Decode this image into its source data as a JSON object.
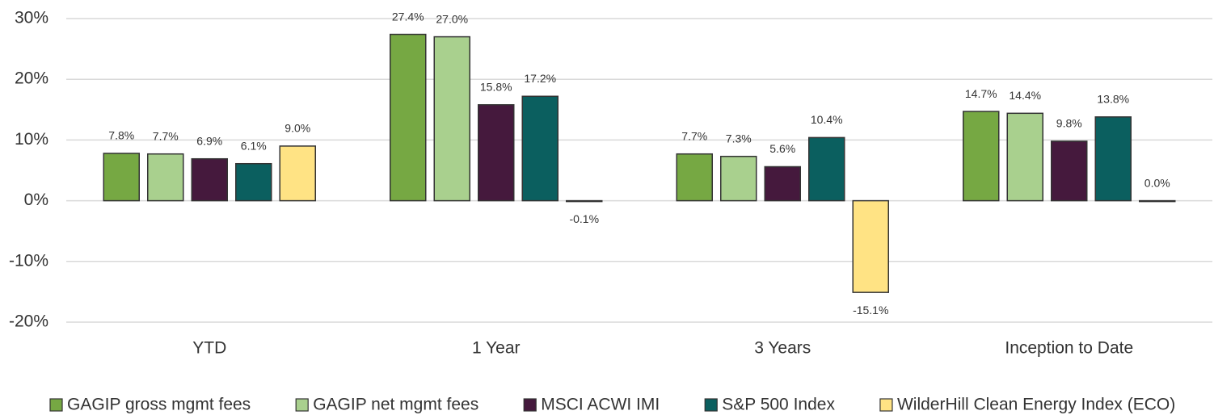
{
  "chart_data": {
    "type": "bar",
    "categories": [
      "YTD",
      "1 Year",
      "3 Years",
      "Inception to Date"
    ],
    "series": [
      {
        "name": "GAGIP gross mgmt fees",
        "color": "#76a843",
        "values": [
          7.8,
          27.4,
          7.7,
          14.7
        ],
        "value_labels": [
          "7.8%",
          "27.4%",
          "7.7%",
          "14.7%"
        ]
      },
      {
        "name": "GAGIP net mgmt fees",
        "color": "#a9d08e",
        "values": [
          7.7,
          27.0,
          7.3,
          14.4
        ],
        "value_labels": [
          "7.7%",
          "27.0%",
          "7.3%",
          "14.4%"
        ]
      },
      {
        "name": "MSCI ACWI IMI",
        "color": "#45193d",
        "values": [
          6.9,
          15.8,
          5.6,
          9.8
        ],
        "value_labels": [
          "6.9%",
          "15.8%",
          "5.6%",
          "9.8%"
        ]
      },
      {
        "name": "S&P 500 Index",
        "color": "#0b5f5f",
        "values": [
          6.1,
          17.2,
          10.4,
          13.8
        ],
        "value_labels": [
          "6.1%",
          "17.2%",
          "10.4%",
          "13.8%"
        ]
      },
      {
        "name": "WilderHill Clean Energy Index (ECO)",
        "color": "#ffe384",
        "values": [
          9.0,
          -0.1,
          -15.1,
          0.0
        ],
        "value_labels": [
          "9.0%",
          "-0.1%",
          "-15.1%",
          "0.0%"
        ]
      }
    ],
    "ylim": [
      -20,
      30
    ],
    "yticks": [
      {
        "value": -20,
        "label": "-20%"
      },
      {
        "value": -10,
        "label": "-10%"
      },
      {
        "value": 0,
        "label": "0%"
      },
      {
        "value": 10,
        "label": "10%"
      },
      {
        "value": 20,
        "label": "20%"
      },
      {
        "value": 30,
        "label": "30%"
      }
    ],
    "grid": true,
    "legend": "bottom"
  }
}
